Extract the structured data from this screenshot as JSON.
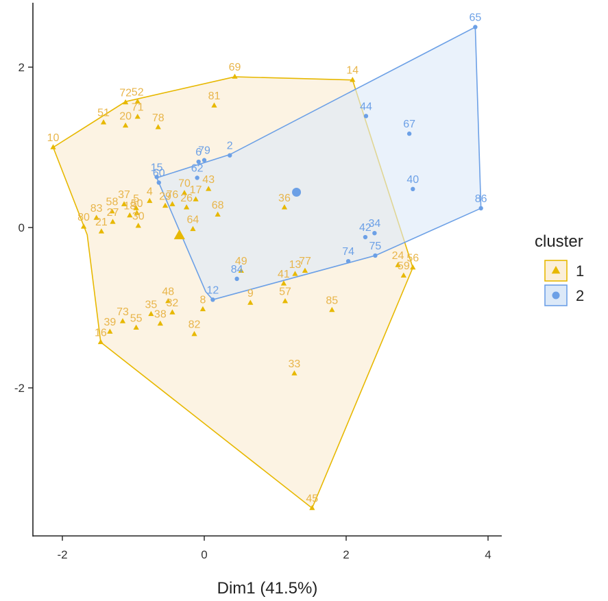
{
  "chart_data": {
    "type": "scatter",
    "xlabel": "Dim1 (41.5%)",
    "ylabel": "",
    "xlim": [
      -2.45,
      4.15
    ],
    "ylim": [
      -3.85,
      2.8
    ],
    "x_ticks": [
      -2,
      0,
      2,
      4
    ],
    "y_ticks": [
      -2,
      0,
      2
    ],
    "x_tick_labels": [
      "-2",
      "0",
      "2",
      "4"
    ],
    "y_tick_labels": [
      "-2",
      "0",
      "2"
    ],
    "grid": false,
    "legend": {
      "title": "cluster",
      "placement": "right",
      "entries": [
        {
          "label": "1",
          "shape": "triangle",
          "color": "#E7B800"
        },
        {
          "label": "2",
          "shape": "circle",
          "color": "#6CA0E6"
        }
      ]
    },
    "colors": {
      "cluster1": "#E7B800",
      "cluster1_label": "#E8B54A",
      "cluster1_fill": "#FBEFD9",
      "cluster2": "#6CA0E6",
      "cluster2_fill": "#DCE9F8"
    },
    "series": [
      {
        "name": "1",
        "shape": "triangle",
        "hull": [
          [
            -2.13,
            1.0
          ],
          [
            -1.11,
            1.57
          ],
          [
            0.43,
            1.88
          ],
          [
            2.09,
            1.84
          ],
          [
            2.94,
            -0.5
          ],
          [
            1.52,
            -3.5
          ],
          [
            -1.46,
            -1.43
          ],
          [
            -1.65,
            -0.09
          ]
        ],
        "centroid": [
          -0.35,
          -0.1
        ],
        "points": [
          {
            "label": "10",
            "x": -2.13,
            "y": 1.0
          },
          {
            "label": "51",
            "x": -1.42,
            "y": 1.31
          },
          {
            "label": "72",
            "x": -1.11,
            "y": 1.56
          },
          {
            "label": "52",
            "x": -0.94,
            "y": 1.57
          },
          {
            "label": "71",
            "x": -0.94,
            "y": 1.38
          },
          {
            "label": "20",
            "x": -1.11,
            "y": 1.27
          },
          {
            "label": "78",
            "x": -0.65,
            "y": 1.25
          },
          {
            "label": "69",
            "x": 0.43,
            "y": 1.88
          },
          {
            "label": "81",
            "x": 0.14,
            "y": 1.52
          },
          {
            "label": "14",
            "x": 2.09,
            "y": 1.84
          },
          {
            "label": "37",
            "x": -1.13,
            "y": 0.29
          },
          {
            "label": "58",
            "x": -1.3,
            "y": 0.2
          },
          {
            "label": "18",
            "x": -1.05,
            "y": 0.15
          },
          {
            "label": "50",
            "x": -0.95,
            "y": 0.18
          },
          {
            "label": "5",
            "x": -0.96,
            "y": 0.24
          },
          {
            "label": "4",
            "x": -0.77,
            "y": 0.33
          },
          {
            "label": "80",
            "x": -1.7,
            "y": 0.01
          },
          {
            "label": "83",
            "x": -1.52,
            "y": 0.12
          },
          {
            "label": "27",
            "x": -1.29,
            "y": 0.07
          },
          {
            "label": "30",
            "x": -0.93,
            "y": 0.02
          },
          {
            "label": "21",
            "x": -1.45,
            "y": -0.05
          },
          {
            "label": "29",
            "x": -0.55,
            "y": 0.27
          },
          {
            "label": "70",
            "x": -0.28,
            "y": 0.43
          },
          {
            "label": "76",
            "x": -0.45,
            "y": 0.29
          },
          {
            "label": "26",
            "x": -0.25,
            "y": 0.25
          },
          {
            "label": "17",
            "x": -0.12,
            "y": 0.35
          },
          {
            "label": "43",
            "x": 0.06,
            "y": 0.48
          },
          {
            "label": "68",
            "x": 0.19,
            "y": 0.16
          },
          {
            "label": "64",
            "x": -0.16,
            "y": -0.02
          },
          {
            "label": "36",
            "x": 1.13,
            "y": 0.25
          },
          {
            "label": "49",
            "x": 0.52,
            "y": -0.54
          },
          {
            "label": "41",
            "x": 1.12,
            "y": -0.7
          },
          {
            "label": "13",
            "x": 1.28,
            "y": -0.58
          },
          {
            "label": "77",
            "x": 1.42,
            "y": -0.54
          },
          {
            "label": "48",
            "x": -0.51,
            "y": -0.92
          },
          {
            "label": "32",
            "x": -0.45,
            "y": -1.06
          },
          {
            "label": "35",
            "x": -0.75,
            "y": -1.08
          },
          {
            "label": "73",
            "x": -1.15,
            "y": -1.17
          },
          {
            "label": "38",
            "x": -0.62,
            "y": -1.2
          },
          {
            "label": "55",
            "x": -0.96,
            "y": -1.25
          },
          {
            "label": "39",
            "x": -1.33,
            "y": -1.3
          },
          {
            "label": "16",
            "x": -1.46,
            "y": -1.43
          },
          {
            "label": "82",
            "x": -0.14,
            "y": -1.33
          },
          {
            "label": "8",
            "x": -0.02,
            "y": -1.02
          },
          {
            "label": "57",
            "x": 1.14,
            "y": -0.92
          },
          {
            "label": "9",
            "x": 0.65,
            "y": -0.94
          },
          {
            "label": "85",
            "x": 1.8,
            "y": -1.03
          },
          {
            "label": "24",
            "x": 2.73,
            "y": -0.47
          },
          {
            "label": "59",
            "x": 2.81,
            "y": -0.6
          },
          {
            "label": "56",
            "x": 2.94,
            "y": -0.5
          },
          {
            "label": "33",
            "x": 1.27,
            "y": -1.82
          },
          {
            "label": "45",
            "x": 1.52,
            "y": -3.5
          }
        ]
      },
      {
        "name": "2",
        "shape": "circle",
        "hull": [
          [
            -0.67,
            0.62
          ],
          [
            0.36,
            0.91
          ],
          [
            3.82,
            2.5
          ],
          [
            3.9,
            0.24
          ],
          [
            2.41,
            -0.35
          ],
          [
            0.12,
            -0.9
          ],
          [
            0.02,
            -0.8
          ]
        ],
        "centroid": [
          1.3,
          0.44
        ],
        "points": [
          {
            "label": "65",
            "x": 3.82,
            "y": 2.5
          },
          {
            "label": "44",
            "x": 2.28,
            "y": 1.39
          },
          {
            "label": "67",
            "x": 2.89,
            "y": 1.17
          },
          {
            "label": "40",
            "x": 2.94,
            "y": 0.48
          },
          {
            "label": "86",
            "x": 3.9,
            "y": 0.24
          },
          {
            "label": "2",
            "x": 0.36,
            "y": 0.9
          },
          {
            "label": "79",
            "x": 0.0,
            "y": 0.84
          },
          {
            "label": "6",
            "x": -0.08,
            "y": 0.82
          },
          {
            "label": "62",
            "x": -0.1,
            "y": 0.62
          },
          {
            "label": "15",
            "x": -0.67,
            "y": 0.63
          },
          {
            "label": "60",
            "x": -0.64,
            "y": 0.56
          },
          {
            "label": "42",
            "x": 2.27,
            "y": -0.12
          },
          {
            "label": "34",
            "x": 2.4,
            "y": -0.07
          },
          {
            "label": "75",
            "x": 2.41,
            "y": -0.35
          },
          {
            "label": "74",
            "x": 2.03,
            "y": -0.42
          },
          {
            "label": "84",
            "x": 0.46,
            "y": -0.64
          },
          {
            "label": "12",
            "x": 0.12,
            "y": -0.9
          }
        ]
      }
    ]
  }
}
